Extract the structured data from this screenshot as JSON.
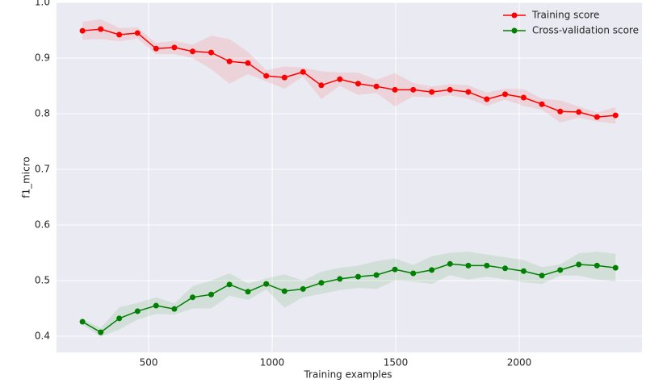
{
  "chart_data": {
    "type": "line",
    "xlabel": "Training examples",
    "ylabel": "f1_micro",
    "x": [
      232,
      306,
      381,
      455,
      530,
      604,
      678,
      753,
      827,
      902,
      976,
      1050,
      1125,
      1199,
      1274,
      1348,
      1422,
      1497,
      1571,
      1646,
      1720,
      1794,
      1869,
      1943,
      2018,
      2092,
      2166,
      2241,
      2315,
      2390
    ],
    "series": [
      {
        "name": "Training score",
        "color": "#ff0000",
        "values": [
          0.949,
          0.952,
          0.942,
          0.945,
          0.917,
          0.919,
          0.912,
          0.91,
          0.894,
          0.891,
          0.868,
          0.865,
          0.875,
          0.851,
          0.862,
          0.854,
          0.849,
          0.843,
          0.843,
          0.839,
          0.843,
          0.839,
          0.826,
          0.835,
          0.829,
          0.817,
          0.804,
          0.803,
          0.794,
          0.797
        ],
        "std": [
          0.016,
          0.018,
          0.012,
          0.01,
          0.01,
          0.012,
          0.012,
          0.03,
          0.04,
          0.02,
          0.01,
          0.02,
          0.008,
          0.025,
          0.012,
          0.02,
          0.012,
          0.03,
          0.012,
          0.01,
          0.01,
          0.012,
          0.012,
          0.01,
          0.015,
          0.01,
          0.02,
          0.01,
          0.008,
          0.015
        ]
      },
      {
        "name": "Cross-validation score",
        "color": "#008000",
        "values": [
          0.426,
          0.407,
          0.432,
          0.445,
          0.455,
          0.449,
          0.47,
          0.475,
          0.493,
          0.48,
          0.494,
          0.481,
          0.485,
          0.496,
          0.503,
          0.507,
          0.51,
          0.52,
          0.513,
          0.519,
          0.53,
          0.527,
          0.527,
          0.522,
          0.517,
          0.509,
          0.519,
          0.529,
          0.527,
          0.523
        ],
        "std": [
          0.005,
          0.008,
          0.02,
          0.015,
          0.015,
          0.01,
          0.02,
          0.025,
          0.02,
          0.015,
          0.01,
          0.03,
          0.015,
          0.02,
          0.02,
          0.02,
          0.025,
          0.02,
          0.015,
          0.025,
          0.02,
          0.025,
          0.02,
          0.02,
          0.02,
          0.015,
          0.01,
          0.02,
          0.025,
          0.025
        ]
      }
    ],
    "xlim": [
      127,
      2497
    ],
    "ylim": [
      0.371,
      1.0
    ],
    "xticks": [
      500,
      1000,
      1500,
      2000
    ],
    "yticks": [
      0.4,
      0.5,
      0.6,
      0.7,
      0.8,
      0.9,
      {
        "value": 1.0,
        "label": "1.0"
      }
    ],
    "grid": true,
    "legend": "upper right"
  }
}
